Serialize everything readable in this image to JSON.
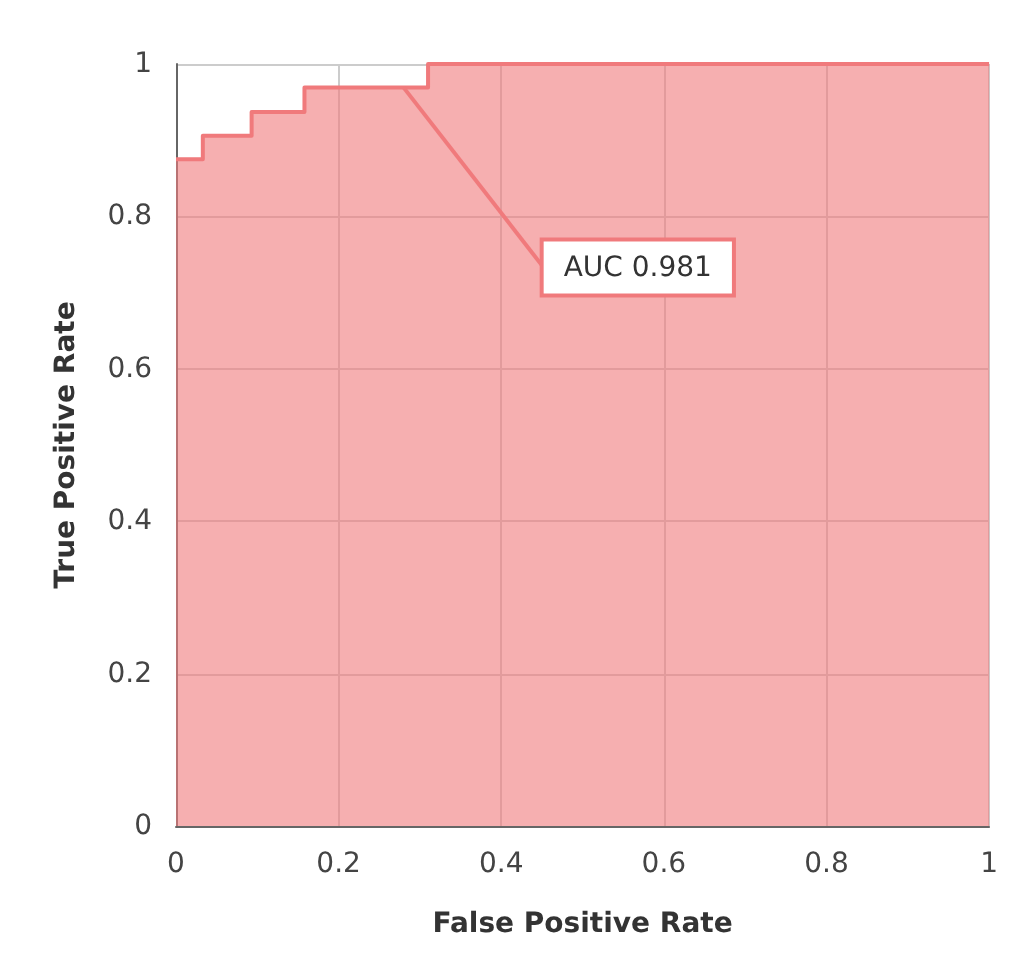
{
  "chart_data": {
    "type": "step",
    "xlabel": "False Positive Rate",
    "ylabel": "True Positive Rate",
    "x": [
      0,
      0.033,
      0.093,
      0.158,
      0.31,
      1
    ],
    "series": [
      {
        "color": "#f07a7c",
        "values": [
          0.875,
          0.906,
          0.937,
          0.969,
          1,
          1
        ]
      }
    ],
    "xlim": [
      0,
      1
    ],
    "ylim": [
      0,
      1
    ],
    "xticks": [
      0,
      0.2,
      0.4,
      0.6,
      0.8,
      1
    ],
    "yticks": [
      0,
      0.2,
      0.4,
      0.6,
      0.8,
      1
    ],
    "grid": true,
    "annotations": [
      {
        "text": "AUC 0.981",
        "x": 0.28,
        "y": 0.969
      }
    ]
  }
}
